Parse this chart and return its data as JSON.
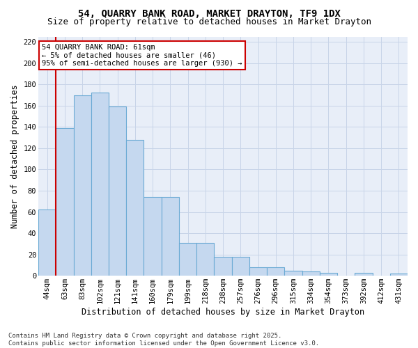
{
  "title_line1": "54, QUARRY BANK ROAD, MARKET DRAYTON, TF9 1DX",
  "title_line2": "Size of property relative to detached houses in Market Drayton",
  "xlabel": "Distribution of detached houses by size in Market Drayton",
  "ylabel": "Number of detached properties",
  "footer_line1": "Contains HM Land Registry data © Crown copyright and database right 2025.",
  "footer_line2": "Contains public sector information licensed under the Open Government Licence v3.0.",
  "categories": [
    "44sqm",
    "63sqm",
    "83sqm",
    "102sqm",
    "121sqm",
    "141sqm",
    "160sqm",
    "179sqm",
    "199sqm",
    "218sqm",
    "238sqm",
    "257sqm",
    "276sqm",
    "296sqm",
    "315sqm",
    "334sqm",
    "354sqm",
    "373sqm",
    "392sqm",
    "412sqm",
    "431sqm"
  ],
  "values": [
    62,
    139,
    170,
    172,
    159,
    128,
    74,
    74,
    31,
    31,
    18,
    18,
    8,
    8,
    5,
    4,
    3,
    0,
    3,
    0,
    2
  ],
  "bar_color": "#c5d8ef",
  "bar_edge_color": "#6aaad4",
  "vline_color": "#cc0000",
  "annotation_text": "54 QUARRY BANK ROAD: 61sqm\n← 5% of detached houses are smaller (46)\n95% of semi-detached houses are larger (930) →",
  "annotation_box_facecolor": "#ffffff",
  "annotation_box_edgecolor": "#cc0000",
  "ylim": [
    0,
    225
  ],
  "yticks": [
    0,
    20,
    40,
    60,
    80,
    100,
    120,
    140,
    160,
    180,
    200,
    220
  ],
  "background_color": "#ffffff",
  "plot_bg_color": "#e8eef8",
  "grid_color": "#c8d4e8",
  "title_fontsize": 10,
  "subtitle_fontsize": 9,
  "axis_label_fontsize": 8.5,
  "tick_fontsize": 7.5,
  "footer_fontsize": 6.5,
  "annot_fontsize": 7.5
}
